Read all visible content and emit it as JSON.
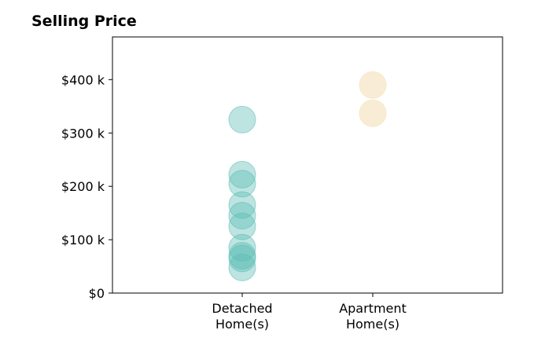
{
  "chart_data": {
    "type": "scatter",
    "title": "Selling Price",
    "xlabel": "",
    "ylabel": "",
    "categories": [
      [
        "Detached",
        "Home(s)"
      ],
      [
        "Apartment",
        "Home(s)"
      ]
    ],
    "ylim": [
      0,
      480000
    ],
    "yticks": [
      {
        "value": 0,
        "label": "$0"
      },
      {
        "value": 100000,
        "label": "$100 k"
      },
      {
        "value": 200000,
        "label": "$200 k"
      },
      {
        "value": 300000,
        "label": "$300 k"
      },
      {
        "value": 400000,
        "label": "$400 k"
      }
    ],
    "grid": false,
    "series": [
      {
        "category": 0,
        "color": "#5bbcb4",
        "values": [
          325000,
          222000,
          205000,
          165000,
          145000,
          125000,
          85000,
          70000,
          65000,
          48000
        ]
      },
      {
        "category": 1,
        "color": "#f3deb0",
        "values": [
          390000,
          337000
        ]
      }
    ]
  }
}
